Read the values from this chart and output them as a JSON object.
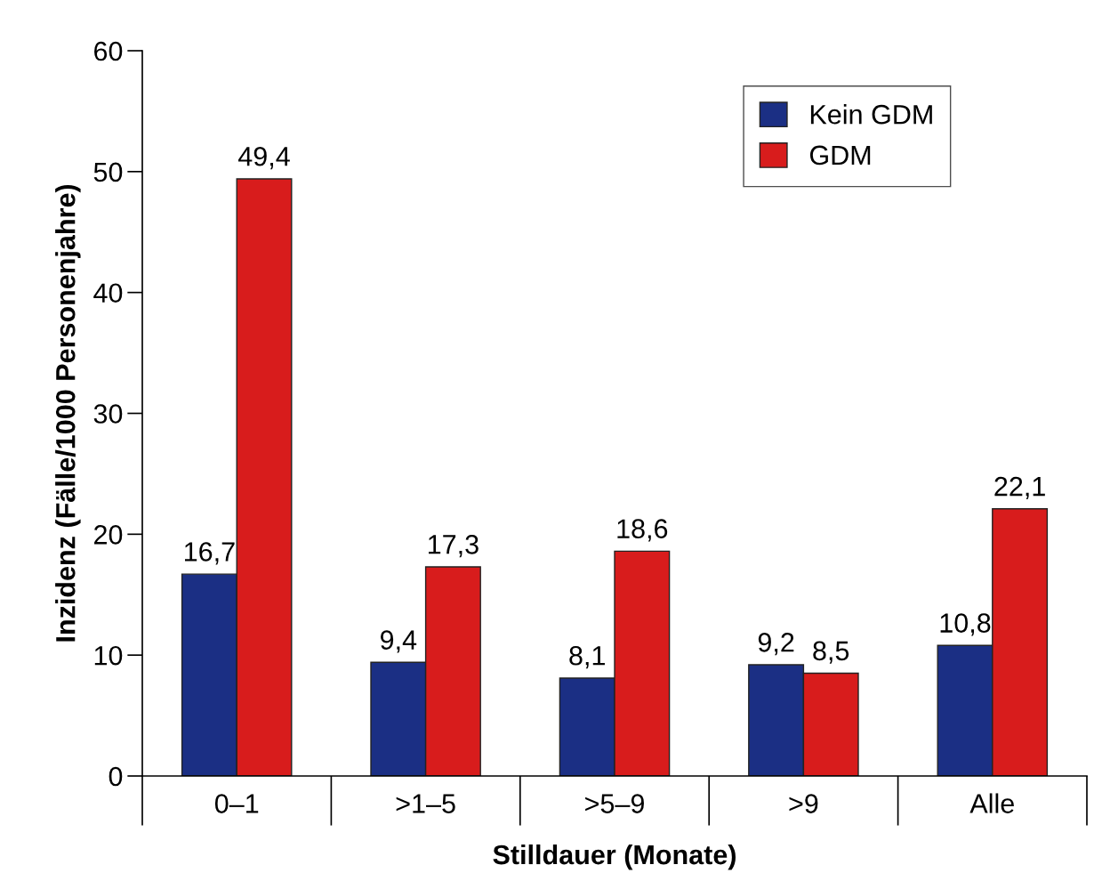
{
  "chart_data": {
    "type": "bar",
    "xlabel": "Stilldauer (Monate)",
    "ylabel": "Inzidenz (Fälle/1000 Personenjahre)",
    "categories": [
      "0–1",
      ">1–5",
      ">5–9",
      ">9",
      "Alle"
    ],
    "series": [
      {
        "name": "Kein GDM",
        "color": "#1b2f84",
        "values": [
          16.7,
          9.4,
          8.1,
          9.2,
          10.8
        ],
        "value_labels": [
          "16,7",
          "9,4",
          "8,1",
          "9,2",
          "10,8"
        ]
      },
      {
        "name": "GDM",
        "color": "#d81c1c",
        "values": [
          49.4,
          17.3,
          18.6,
          8.5,
          22.1
        ],
        "value_labels": [
          "49,4",
          "17,3",
          "18,6",
          "8,5",
          "22,1"
        ]
      }
    ],
    "ylim": [
      0,
      60
    ],
    "yticks": [
      0,
      10,
      20,
      30,
      40,
      50,
      60
    ],
    "grid": false,
    "legend": "top right"
  }
}
